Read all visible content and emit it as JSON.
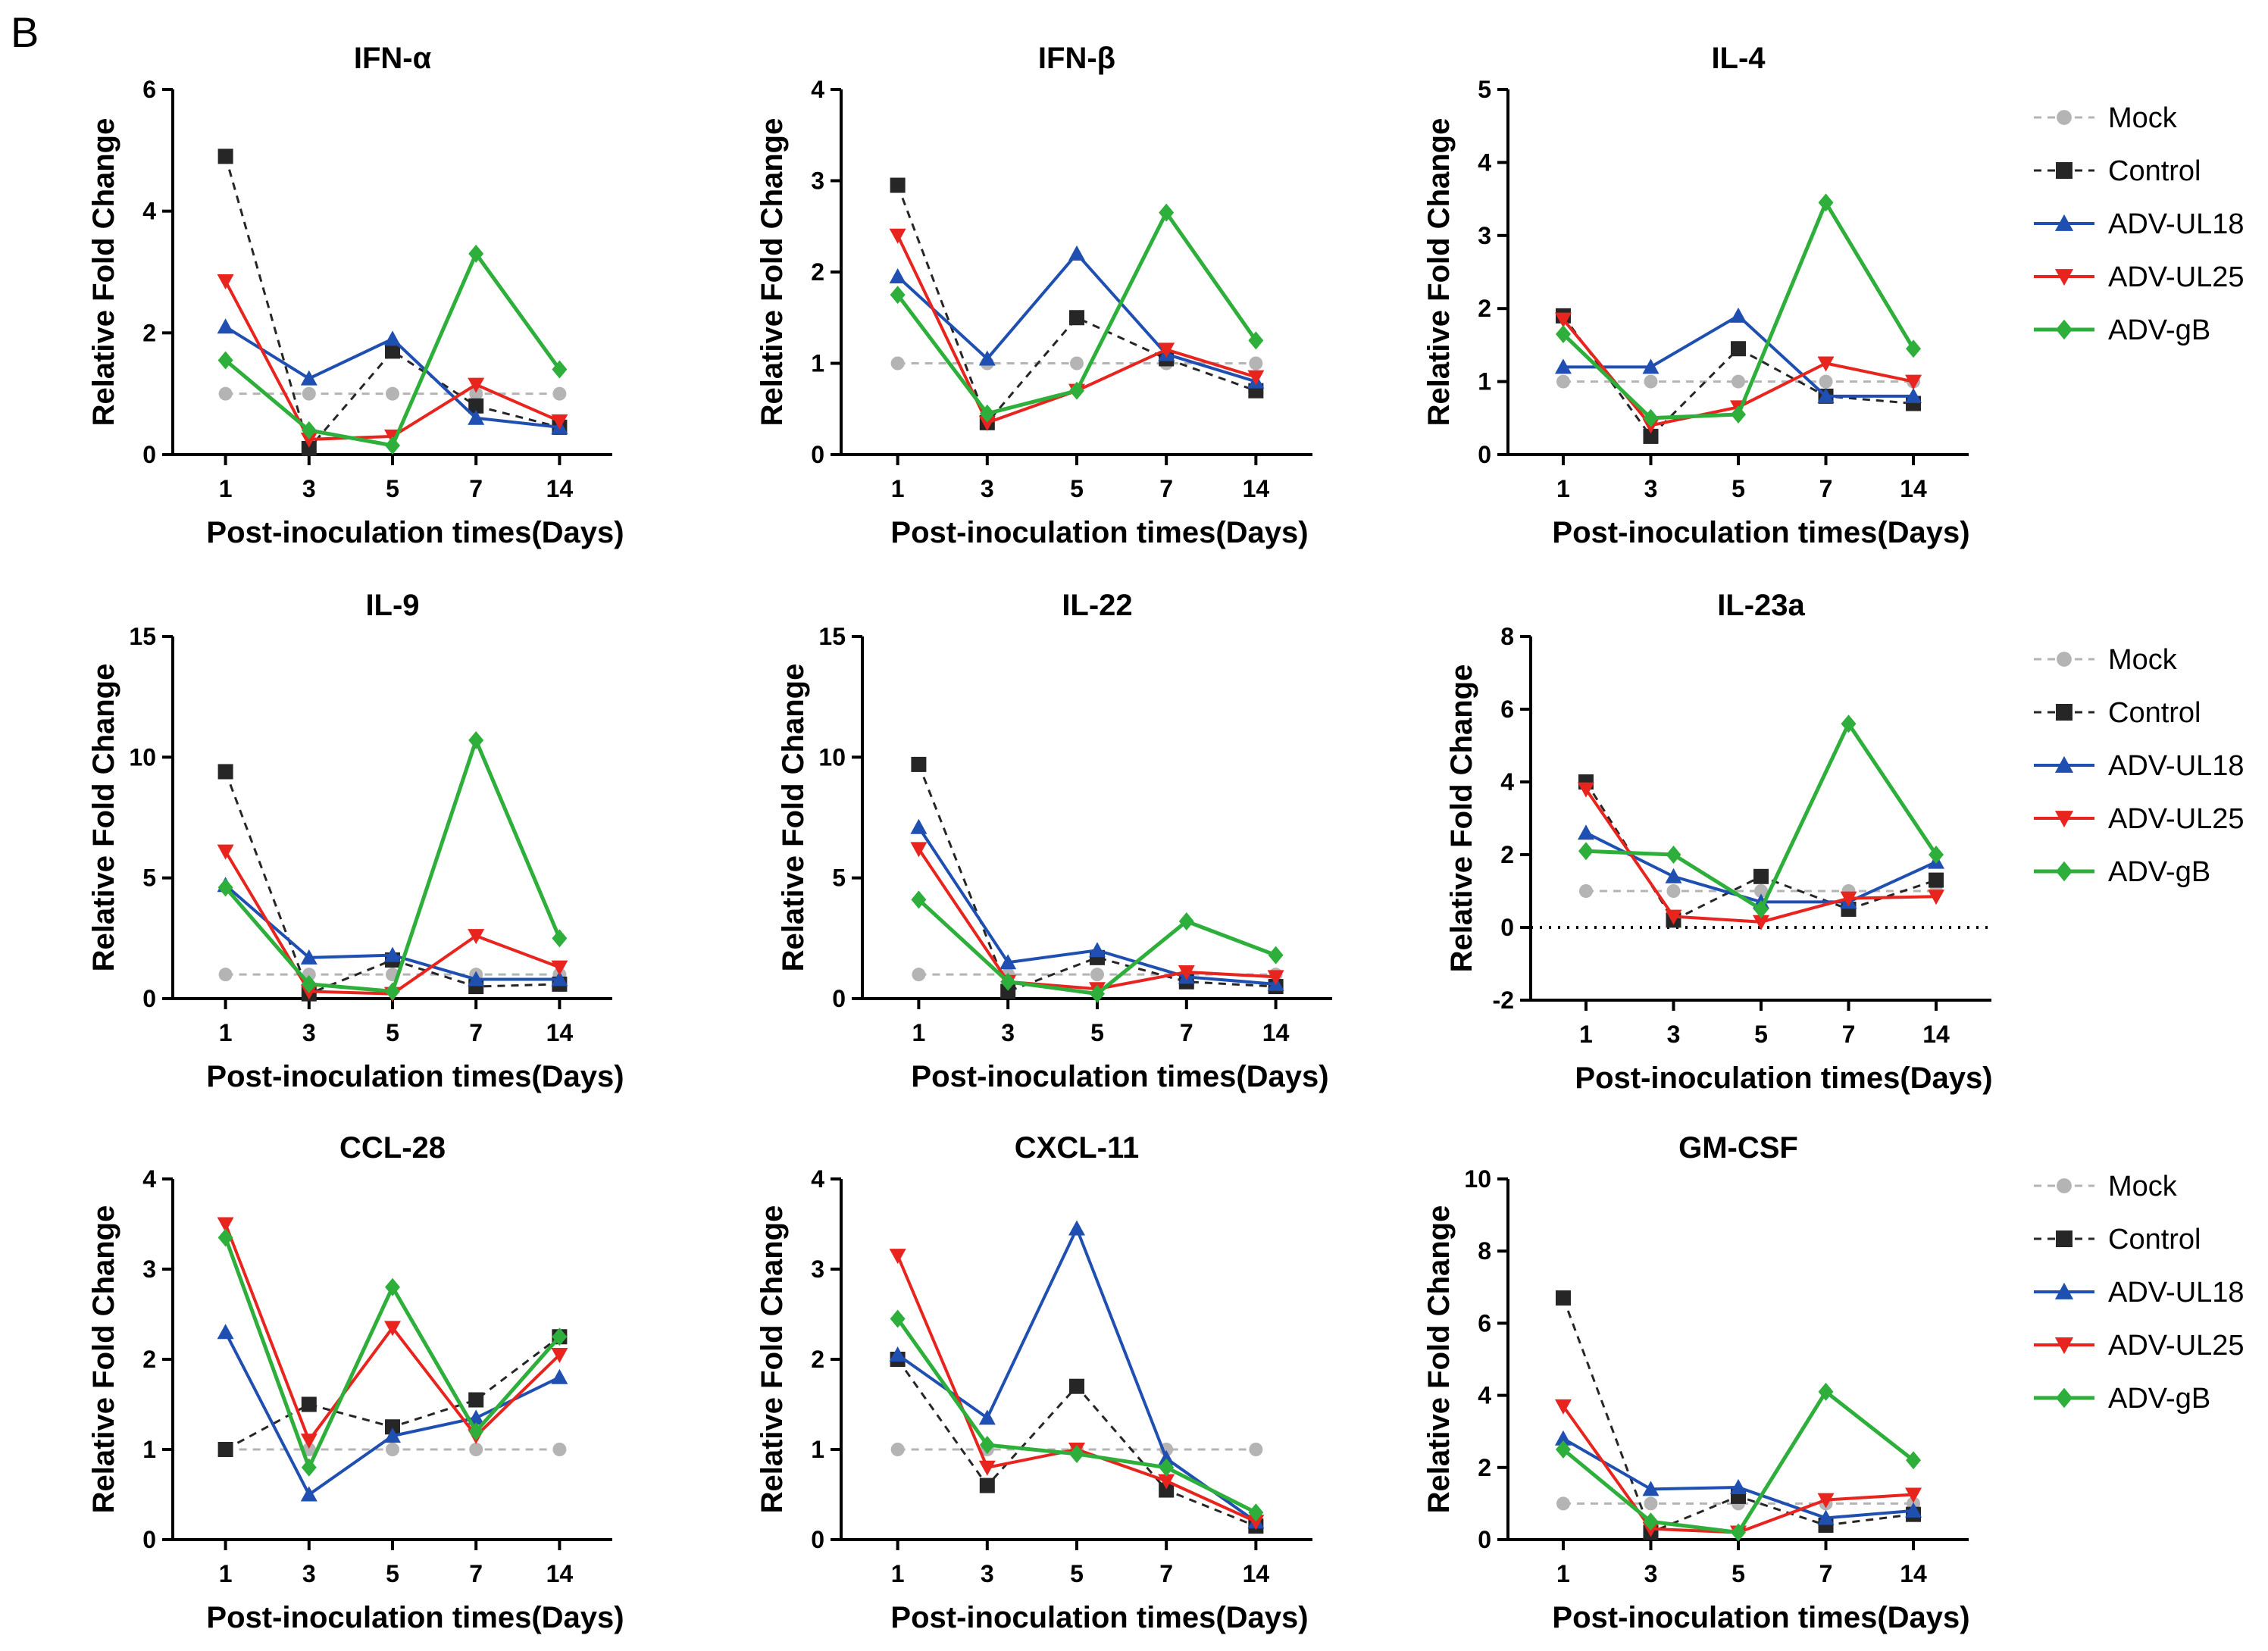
{
  "figure": {
    "panel_letter": "B"
  },
  "legend_entries": [
    "Mock",
    "Control",
    "ADV-UL18",
    "ADV-UL25",
    "ADV-gB"
  ],
  "series_colors": {
    "Mock": "#b4b4b4",
    "Control": "#262626",
    "ADV-UL18": "#1f4fb0",
    "ADV-UL25": "#e8241f",
    "ADV-gB": "#2eae3a"
  },
  "chart_data": [
    {
      "type": "line",
      "title": "IFN-α",
      "xlabel": "Post-inoculation times(Days)",
      "ylabel": "Relative Fold Change",
      "categories": [
        "1",
        "3",
        "5",
        "7",
        "14"
      ],
      "ylim": [
        0,
        6
      ],
      "yticks": [
        "0",
        "2",
        "4",
        "6"
      ],
      "series": [
        {
          "name": "Mock",
          "values": [
            1.0,
            1.0,
            1.0,
            1.0,
            1.0
          ]
        },
        {
          "name": "Control",
          "values": [
            4.9,
            0.1,
            1.7,
            0.8,
            0.45
          ]
        },
        {
          "name": "ADV-UL18",
          "values": [
            2.1,
            1.25,
            1.9,
            0.6,
            0.45
          ]
        },
        {
          "name": "ADV-UL25",
          "values": [
            2.85,
            0.25,
            0.3,
            1.15,
            0.55
          ]
        },
        {
          "name": "ADV-gB",
          "values": [
            1.55,
            0.4,
            0.15,
            3.3,
            1.4
          ]
        }
      ]
    },
    {
      "type": "line",
      "title": "IFN-β",
      "xlabel": "Post-inoculation times(Days)",
      "ylabel": "Relative Fold Change",
      "categories": [
        "1",
        "3",
        "5",
        "7",
        "14"
      ],
      "ylim": [
        0,
        4
      ],
      "yticks": [
        "0",
        "1",
        "2",
        "3",
        "4"
      ],
      "series": [
        {
          "name": "Mock",
          "values": [
            1.0,
            1.0,
            1.0,
            1.0,
            1.0
          ]
        },
        {
          "name": "Control",
          "values": [
            2.95,
            0.35,
            1.5,
            1.05,
            0.7
          ]
        },
        {
          "name": "ADV-UL18",
          "values": [
            1.95,
            1.05,
            2.2,
            1.1,
            0.8
          ]
        },
        {
          "name": "ADV-UL25",
          "values": [
            2.4,
            0.35,
            0.7,
            1.15,
            0.85
          ]
        },
        {
          "name": "ADV-gB",
          "values": [
            1.75,
            0.45,
            0.7,
            2.65,
            1.25
          ]
        }
      ]
    },
    {
      "type": "line",
      "title": "IL-4",
      "xlabel": "Post-inoculation times(Days)",
      "ylabel": "Relative Fold Change",
      "categories": [
        "1",
        "3",
        "5",
        "7",
        "14"
      ],
      "ylim": [
        0,
        5
      ],
      "yticks": [
        "0",
        "1",
        "2",
        "3",
        "4",
        "5"
      ],
      "series": [
        {
          "name": "Mock",
          "values": [
            1.0,
            1.0,
            1.0,
            1.0,
            1.0
          ]
        },
        {
          "name": "Control",
          "values": [
            1.9,
            0.25,
            1.45,
            0.8,
            0.7
          ]
        },
        {
          "name": "ADV-UL18",
          "values": [
            1.2,
            1.2,
            1.9,
            0.8,
            0.8
          ]
        },
        {
          "name": "ADV-UL25",
          "values": [
            1.85,
            0.4,
            0.65,
            1.25,
            1.0
          ]
        },
        {
          "name": "ADV-gB",
          "values": [
            1.65,
            0.5,
            0.55,
            3.45,
            1.45
          ]
        }
      ]
    },
    {
      "type": "line",
      "title": "IL-9",
      "xlabel": "Post-inoculation times(Days)",
      "ylabel": "Relative Fold Change",
      "categories": [
        "1",
        "3",
        "5",
        "7",
        "14"
      ],
      "ylim": [
        0,
        15
      ],
      "yticks": [
        "0",
        "5",
        "10",
        "15"
      ],
      "series": [
        {
          "name": "Mock",
          "values": [
            1.0,
            1.0,
            1.0,
            1.0,
            1.0
          ]
        },
        {
          "name": "Control",
          "values": [
            9.4,
            0.2,
            1.6,
            0.5,
            0.6
          ]
        },
        {
          "name": "ADV-UL18",
          "values": [
            4.7,
            1.7,
            1.8,
            0.8,
            0.8
          ]
        },
        {
          "name": "ADV-UL25",
          "values": [
            6.1,
            0.3,
            0.2,
            2.6,
            1.3
          ]
        },
        {
          "name": "ADV-gB",
          "values": [
            4.6,
            0.6,
            0.3,
            10.7,
            2.5
          ]
        }
      ]
    },
    {
      "type": "line",
      "title": "IL-22",
      "xlabel": "Post-inoculation times(Days)",
      "ylabel": "Relative Fold Change",
      "categories": [
        "1",
        "3",
        "5",
        "7",
        "14"
      ],
      "ylim": [
        0,
        15
      ],
      "yticks": [
        "0",
        "5",
        "10",
        "15"
      ],
      "series": [
        {
          "name": "Mock",
          "values": [
            1.0,
            1.0,
            1.0,
            1.0,
            1.0
          ]
        },
        {
          "name": "Control",
          "values": [
            9.7,
            0.3,
            1.7,
            0.7,
            0.5
          ]
        },
        {
          "name": "ADV-UL18",
          "values": [
            7.1,
            1.5,
            2.0,
            0.9,
            0.6
          ]
        },
        {
          "name": "ADV-UL25",
          "values": [
            6.2,
            0.7,
            0.4,
            1.1,
            0.9
          ]
        },
        {
          "name": "ADV-gB",
          "values": [
            4.1,
            0.7,
            0.2,
            3.2,
            1.8
          ]
        }
      ]
    },
    {
      "type": "line",
      "title": "IL-23a",
      "xlabel": "Post-inoculation times(Days)",
      "ylabel": "Relative Fold Change",
      "categories": [
        "1",
        "3",
        "5",
        "7",
        "14"
      ],
      "ylim": [
        -2,
        8
      ],
      "yticks": [
        "-2",
        "0",
        "2",
        "4",
        "6",
        "8"
      ],
      "series": [
        {
          "name": "Mock",
          "values": [
            1.0,
            1.0,
            1.0,
            1.0,
            1.0
          ]
        },
        {
          "name": "Control",
          "values": [
            4.0,
            0.2,
            1.4,
            0.5,
            1.3
          ]
        },
        {
          "name": "ADV-UL18",
          "values": [
            2.6,
            1.4,
            0.7,
            0.7,
            1.8
          ]
        },
        {
          "name": "ADV-UL25",
          "values": [
            3.8,
            0.3,
            0.15,
            0.8,
            0.85
          ]
        },
        {
          "name": "ADV-gB",
          "values": [
            2.1,
            2.0,
            0.5,
            5.6,
            2.0
          ]
        }
      ]
    },
    {
      "type": "line",
      "title": "CCL-28",
      "xlabel": "Post-inoculation times(Days)",
      "ylabel": "Relative Fold Change",
      "categories": [
        "1",
        "3",
        "5",
        "7",
        "14"
      ],
      "ylim": [
        0,
        4
      ],
      "yticks": [
        "0",
        "1",
        "2",
        "3",
        "4"
      ],
      "series": [
        {
          "name": "Mock",
          "values": [
            1.0,
            1.0,
            1.0,
            1.0,
            1.0
          ]
        },
        {
          "name": "Control",
          "values": [
            1.0,
            1.5,
            1.25,
            1.55,
            2.25
          ]
        },
        {
          "name": "ADV-UL18",
          "values": [
            2.3,
            0.5,
            1.15,
            1.35,
            1.8
          ]
        },
        {
          "name": "ADV-UL25",
          "values": [
            3.5,
            1.1,
            2.35,
            1.15,
            2.05
          ]
        },
        {
          "name": "ADV-gB",
          "values": [
            3.35,
            0.8,
            2.8,
            1.2,
            2.25
          ]
        }
      ]
    },
    {
      "type": "line",
      "title": "CXCL-11",
      "xlabel": "Post-inoculation times(Days)",
      "ylabel": "Relative Fold Change",
      "categories": [
        "1",
        "3",
        "5",
        "7",
        "14"
      ],
      "ylim": [
        0,
        4
      ],
      "yticks": [
        "0",
        "1",
        "2",
        "3",
        "4"
      ],
      "series": [
        {
          "name": "Mock",
          "values": [
            1.0,
            1.0,
            1.0,
            1.0,
            1.0
          ]
        },
        {
          "name": "Control",
          "values": [
            2.0,
            0.6,
            1.7,
            0.55,
            0.15
          ]
        },
        {
          "name": "ADV-UL18",
          "values": [
            2.05,
            1.35,
            3.45,
            0.9,
            0.2
          ]
        },
        {
          "name": "ADV-UL25",
          "values": [
            3.15,
            0.8,
            1.0,
            0.65,
            0.2
          ]
        },
        {
          "name": "ADV-gB",
          "values": [
            2.45,
            1.05,
            0.95,
            0.8,
            0.3
          ]
        }
      ]
    },
    {
      "type": "line",
      "title": "GM-CSF",
      "xlabel": "Post-inoculation times(Days)",
      "ylabel": "Relative Fold Change",
      "categories": [
        "1",
        "3",
        "5",
        "7",
        "14"
      ],
      "ylim": [
        0,
        10
      ],
      "yticks": [
        "0",
        "2",
        "4",
        "6",
        "8",
        "10"
      ],
      "series": [
        {
          "name": "Mock",
          "values": [
            1.0,
            1.0,
            1.0,
            1.0,
            1.0
          ]
        },
        {
          "name": "Control",
          "values": [
            6.7,
            0.2,
            1.2,
            0.4,
            0.7
          ]
        },
        {
          "name": "ADV-UL18",
          "values": [
            2.8,
            1.4,
            1.45,
            0.6,
            0.8
          ]
        },
        {
          "name": "ADV-UL25",
          "values": [
            3.7,
            0.3,
            0.2,
            1.1,
            1.25
          ]
        },
        {
          "name": "ADV-gB",
          "values": [
            2.5,
            0.5,
            0.2,
            4.1,
            2.2
          ]
        }
      ]
    }
  ]
}
